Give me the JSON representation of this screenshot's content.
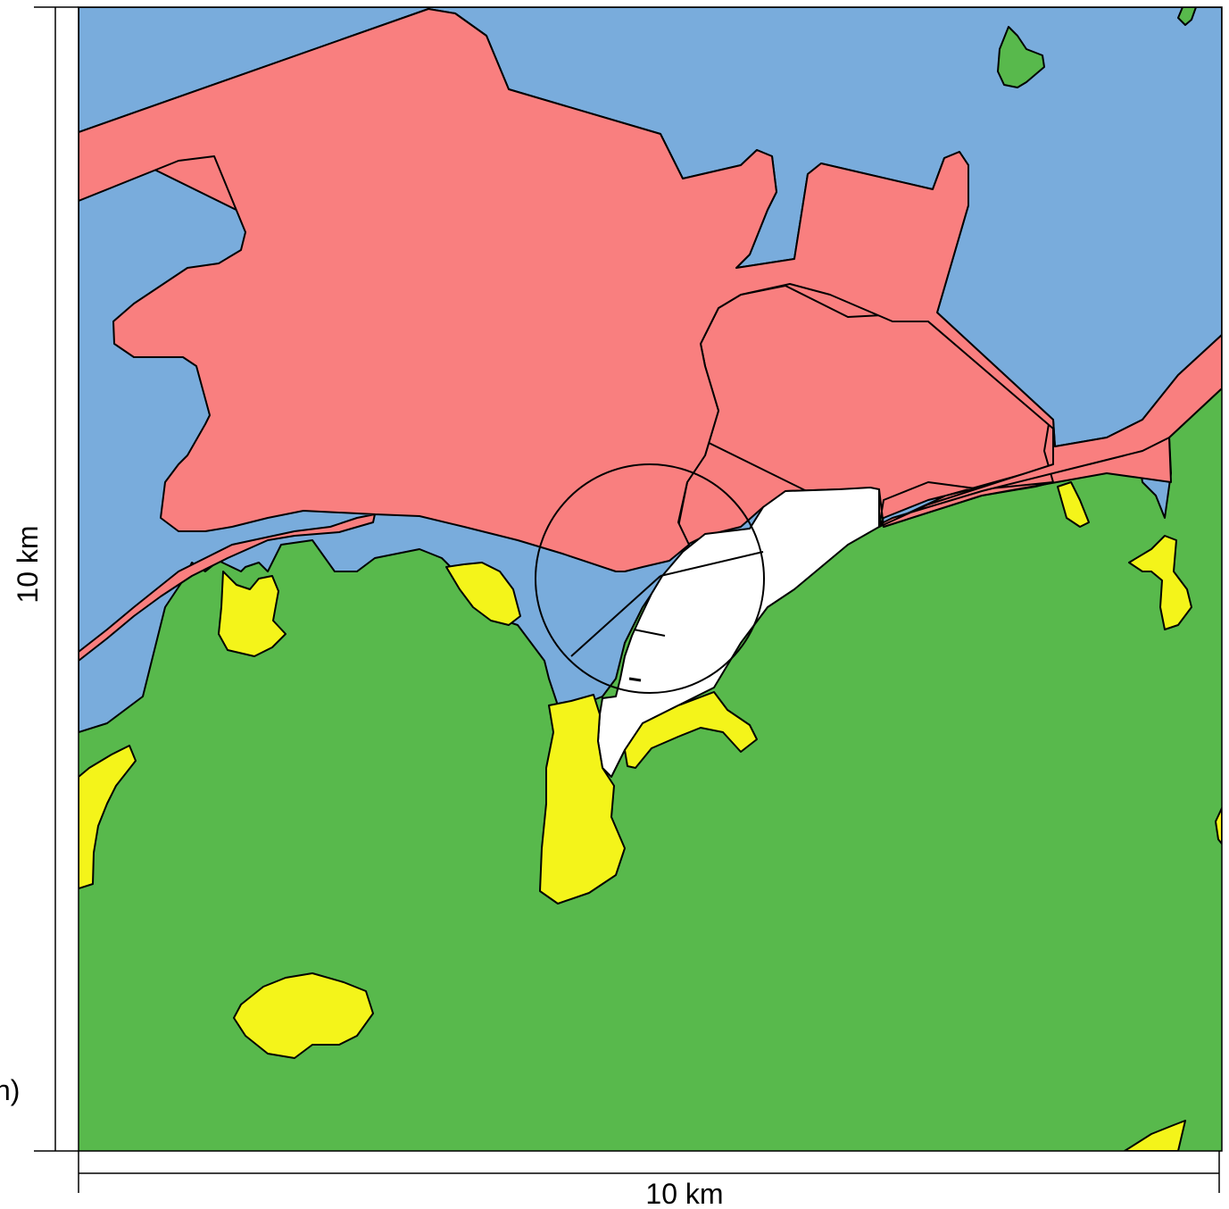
{
  "scale_bars": {
    "horizontal_label": "10 km",
    "vertical_label": "10 km"
  },
  "edge_text": "n)",
  "legend_colors": {
    "water": "#79acdc",
    "urban": "#f97f7f",
    "green": "#58b94c",
    "yellow": "#f4f41a",
    "white_area": "#ffffff"
  }
}
